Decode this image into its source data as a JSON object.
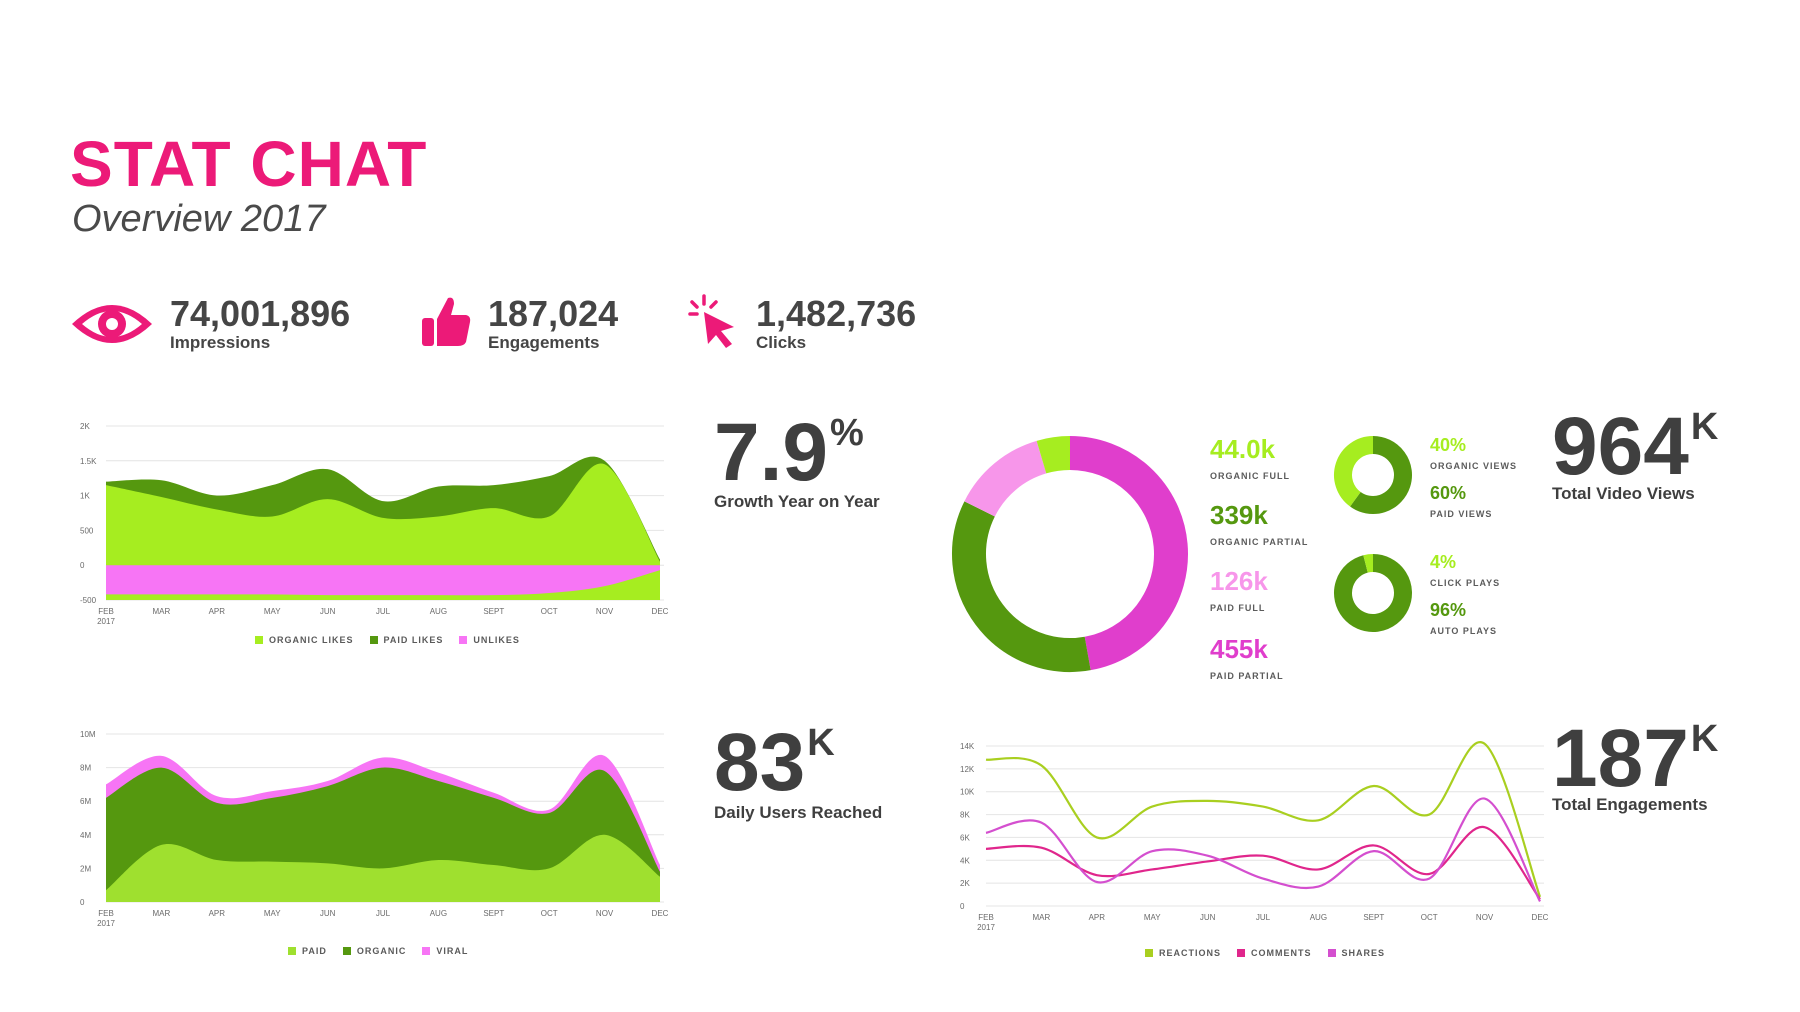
{
  "header": {
    "title": "STAT CHAT",
    "subtitle": "Overview 2017"
  },
  "kpis": [
    {
      "icon": "eye-icon",
      "value": "74,001,896",
      "label": "Impressions"
    },
    {
      "icon": "thumbs-up-icon",
      "value": "187,024",
      "label": "Engagements"
    },
    {
      "icon": "cursor-click-icon",
      "value": "1,482,736",
      "label": "Clicks"
    }
  ],
  "colors": {
    "brand": "#ec1a78",
    "lime": "#a6ed20",
    "green": "#55980f",
    "pink": "#f775f5",
    "magenta": "#e03ecc",
    "lightpink": "#f796ea"
  },
  "highlights": {
    "growth": {
      "value": "7.9",
      "suffix": "%",
      "label": "Growth Year on Year"
    },
    "daily": {
      "value": "83",
      "suffix": "K",
      "label": "Daily Users Reached"
    },
    "video": {
      "value": "964",
      "suffix": "K",
      "label": "Total Video Views"
    },
    "engagements": {
      "value": "187",
      "suffix": "K",
      "label": "Total Engagements"
    }
  },
  "video_stats": [
    {
      "value": "44.0k",
      "label": "ORGANIC FULL",
      "color": "#a6ed20"
    },
    {
      "value": "339k",
      "label": "ORGANIC PARTIAL",
      "color": "#55980f"
    },
    {
      "value": "126k",
      "label": "PAID FULL",
      "color": "#f796ea"
    },
    {
      "value": "455k",
      "label": "PAID PARTIAL",
      "color": "#e03ecc"
    }
  ],
  "mini_donuts": [
    {
      "items": [
        {
          "value": "40%",
          "label": "ORGANIC VIEWS",
          "color": "#a6ed20"
        },
        {
          "value": "60%",
          "label": "PAID VIEWS",
          "color": "#55980f"
        }
      ]
    },
    {
      "items": [
        {
          "value": "4%",
          "label": "CLICK PLAYS",
          "color": "#a6ed20"
        },
        {
          "value": "96%",
          "label": "AUTO PLAYS",
          "color": "#55980f"
        }
      ]
    }
  ],
  "chart_data": [
    {
      "type": "area",
      "x": [
        "FEB",
        "MAR",
        "APR",
        "MAY",
        "JUN",
        "JUL",
        "AUG",
        "SEPT",
        "OCT",
        "NOV",
        "DEC"
      ],
      "x_sublabel": "2017",
      "y_ticks": [
        "2K",
        "1.5K",
        "1K",
        "500",
        "0",
        "-500"
      ],
      "ylim": [
        -500,
        2000
      ],
      "series": [
        {
          "name": "ORGANIC LIKES",
          "color": "#a6ed20",
          "values": [
            1150,
            980,
            800,
            700,
            950,
            680,
            700,
            820,
            700,
            1450,
            50
          ]
        },
        {
          "name": "PAID LIKES",
          "color": "#55980f",
          "values": [
            1200,
            1220,
            1000,
            1150,
            1380,
            920,
            1130,
            1150,
            1280,
            1500,
            80
          ]
        },
        {
          "name": "UNLIKES",
          "color": "#f775f5",
          "values": [
            -420,
            -420,
            -420,
            -420,
            -430,
            -430,
            -430,
            -430,
            -400,
            -300,
            -70
          ]
        }
      ],
      "grid": true,
      "legend": "bottom"
    },
    {
      "type": "area",
      "x": [
        "FEB",
        "MAR",
        "APR",
        "MAY",
        "JUN",
        "JUL",
        "AUG",
        "SEPT",
        "OCT",
        "NOV",
        "DEC"
      ],
      "x_sublabel": "2017",
      "y_ticks": [
        "10M",
        "8M",
        "6M",
        "4M",
        "2M",
        "0"
      ],
      "ylim": [
        0,
        10000000
      ],
      "series": [
        {
          "name": "PAID",
          "color": "#9fe02f",
          "values": [
            700000,
            3400000,
            2500000,
            2400000,
            2300000,
            2000000,
            2500000,
            2200000,
            2000000,
            4000000,
            1500000
          ]
        },
        {
          "name": "ORGANIC",
          "color": "#55980f",
          "values": [
            6200000,
            8000000,
            5900000,
            6200000,
            6900000,
            8000000,
            7200000,
            6200000,
            5300000,
            7800000,
            1800000
          ]
        },
        {
          "name": "VIRAL",
          "color": "#f775f5",
          "values": [
            7000000,
            8700000,
            6300000,
            6600000,
            7200000,
            8600000,
            7700000,
            6500000,
            5500000,
            8700000,
            2200000
          ]
        }
      ],
      "grid": true,
      "legend": "bottom"
    },
    {
      "type": "line",
      "x": [
        "FEB",
        "MAR",
        "APR",
        "MAY",
        "JUN",
        "JUL",
        "AUG",
        "SEPT",
        "OCT",
        "NOV",
        "DEC"
      ],
      "x_sublabel": "2017",
      "y_ticks": [
        "14K",
        "12K",
        "10K",
        "8K",
        "6K",
        "4K",
        "2K",
        "0"
      ],
      "ylim": [
        0,
        14000
      ],
      "series": [
        {
          "name": "REACTIONS",
          "color": "#a9cf20",
          "values": [
            12800,
            12300,
            6000,
            8700,
            9200,
            8700,
            7500,
            10500,
            8000,
            14200,
            800
          ]
        },
        {
          "name": "COMMENTS",
          "color": "#e0268c",
          "values": [
            5000,
            5100,
            2700,
            3200,
            3900,
            4400,
            3200,
            5300,
            2800,
            6900,
            600
          ]
        },
        {
          "name": "SHARES",
          "color": "#d44fcf",
          "values": [
            6400,
            7300,
            2100,
            4800,
            4400,
            2400,
            1700,
            4800,
            2400,
            9400,
            400
          ]
        }
      ],
      "grid": true,
      "legend": "bottom"
    },
    {
      "type": "pie",
      "categories": [
        "ORGANIC FULL",
        "ORGANIC PARTIAL",
        "PAID FULL",
        "PAID PARTIAL"
      ],
      "values": [
        44.0,
        339,
        126,
        455
      ],
      "unit": "k",
      "colors": [
        "#a6ed20",
        "#55980f",
        "#f796ea",
        "#e03ecc"
      ]
    },
    {
      "type": "pie",
      "categories": [
        "ORGANIC VIEWS",
        "PAID VIEWS"
      ],
      "values": [
        40,
        60
      ],
      "colors": [
        "#a6ed20",
        "#55980f"
      ]
    },
    {
      "type": "pie",
      "categories": [
        "CLICK PLAYS",
        "AUTO PLAYS"
      ],
      "values": [
        4,
        96
      ],
      "colors": [
        "#a6ed20",
        "#55980f"
      ]
    }
  ]
}
